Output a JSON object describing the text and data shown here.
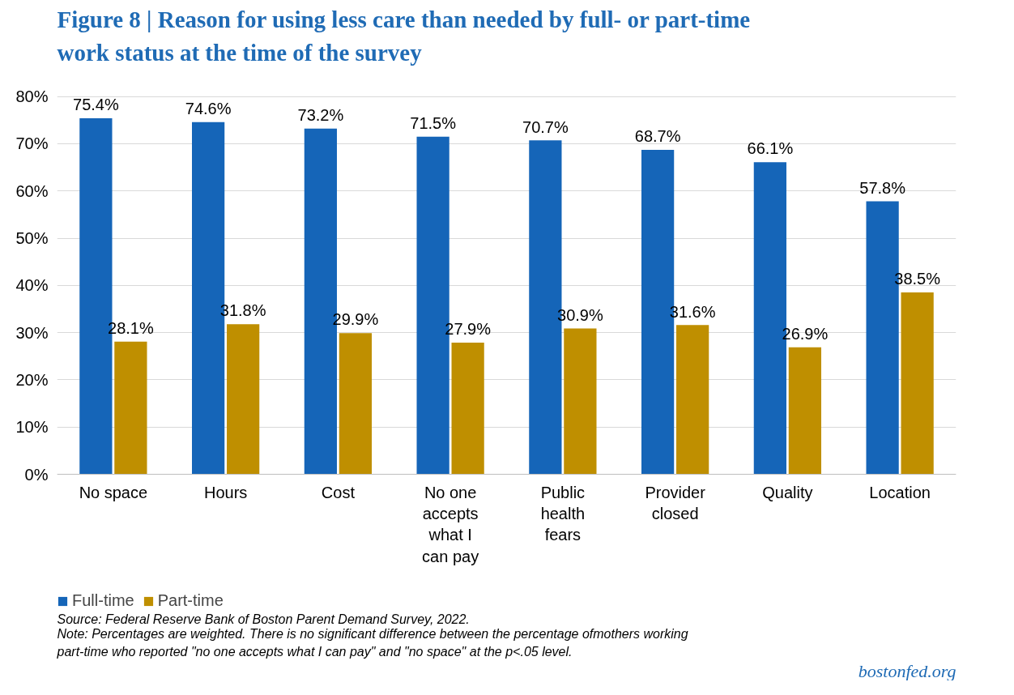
{
  "chart_data": {
    "type": "bar",
    "title": "Figure 8 | Reason for using less care than needed by full- or part-time work status at the time of the survey",
    "categories": [
      "No space",
      "Hours",
      "Cost",
      "No one accepts what I can pay",
      "Public health fears",
      "Provider closed",
      "Quality",
      "Location"
    ],
    "series": [
      {
        "name": "Full-time",
        "color": "#1565b8",
        "values": [
          75.4,
          74.6,
          73.2,
          71.5,
          70.7,
          68.7,
          66.1,
          57.8
        ],
        "value_labels": [
          "75.4%",
          "74.6%",
          "73.2%",
          "71.5%",
          "70.7%",
          "68.7%",
          "66.1%",
          "57.8%"
        ]
      },
      {
        "name": "Part-time",
        "color": "#bf8f00",
        "values": [
          28.1,
          31.8,
          29.9,
          27.9,
          30.9,
          31.6,
          26.9,
          38.5
        ],
        "value_labels": [
          "28.1%",
          "31.8%",
          "29.9%",
          "27.9%",
          "30.9%",
          "31.6%",
          "26.9%",
          "38.5%"
        ]
      }
    ],
    "ylim": [
      0,
      80
    ],
    "yticks": [
      {
        "value": 0,
        "label": "0%"
      },
      {
        "value": 10,
        "label": "10%"
      },
      {
        "value": 20,
        "label": "20%"
      },
      {
        "value": 30,
        "label": "30%"
      },
      {
        "value": 40,
        "label": "40%"
      },
      {
        "value": 50,
        "label": "50%"
      },
      {
        "value": 60,
        "label": "60%"
      },
      {
        "value": 70,
        "label": "70%"
      },
      {
        "value": 80,
        "label": "80%"
      }
    ],
    "grid": "y",
    "legend": "bottom left",
    "annotations": [
      "Source: Federal Reserve Bank of Boston Parent Demand Survey, 2022.",
      "Note: Percentages are weighted. There is no significant difference between the percentage ofmothers working part-time who reported \"no one accepts what I can pay\" and \"no space\" at the p<.05 level.",
      "bostonfed.org"
    ]
  }
}
